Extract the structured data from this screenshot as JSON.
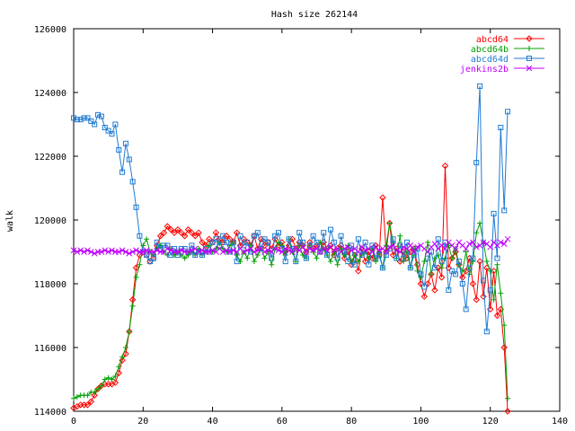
{
  "chart_data": {
    "type": "line",
    "title": "Hash size 262144",
    "xlabel": "",
    "ylabel": "walk",
    "xlim": [
      0,
      140
    ],
    "ylim": [
      114000,
      126000
    ],
    "xticks": [
      0,
      20,
      40,
      60,
      80,
      100,
      120,
      140
    ],
    "yticks": [
      114000,
      116000,
      118000,
      120000,
      122000,
      124000,
      126000
    ],
    "grid": false,
    "legend_position": "top-right",
    "series": [
      {
        "name": "abcd64",
        "color": "#ff0000",
        "marker": "diamond",
        "x": [
          0,
          1,
          2,
          3,
          4,
          5,
          6,
          7,
          8,
          9,
          10,
          11,
          12,
          13,
          14,
          15,
          16,
          17,
          18,
          19,
          20,
          21,
          22,
          23,
          24,
          25,
          26,
          27,
          28,
          29,
          30,
          31,
          32,
          33,
          34,
          35,
          36,
          37,
          38,
          39,
          40,
          41,
          42,
          43,
          44,
          45,
          46,
          47,
          48,
          49,
          50,
          51,
          52,
          53,
          54,
          55,
          56,
          57,
          58,
          59,
          60,
          61,
          62,
          63,
          64,
          65,
          66,
          67,
          68,
          69,
          70,
          71,
          72,
          73,
          74,
          75,
          76,
          77,
          78,
          79,
          80,
          81,
          82,
          83,
          84,
          85,
          86,
          87,
          88,
          89,
          90,
          91,
          92,
          93,
          94,
          95,
          96,
          97,
          98,
          99,
          100,
          101,
          102,
          103,
          104,
          105,
          106,
          107,
          108,
          109,
          110,
          111,
          112,
          113,
          114,
          115,
          116,
          117,
          118,
          119,
          120,
          121,
          122,
          123,
          124,
          125
        ],
        "y": [
          114100,
          114150,
          114200,
          114200,
          114200,
          114300,
          114500,
          114700,
          114800,
          114850,
          114850,
          114850,
          114900,
          115200,
          115600,
          115800,
          116500,
          117500,
          118500,
          118900,
          119000,
          118900,
          118700,
          118800,
          119200,
          119500,
          119600,
          119800,
          119700,
          119600,
          119700,
          119600,
          119500,
          119700,
          119600,
          119500,
          119600,
          119300,
          119200,
          119400,
          119300,
          119600,
          119400,
          119300,
          119500,
          119400,
          119300,
          119600,
          119200,
          119400,
          119300,
          119200,
          119500,
          119100,
          119400,
          119200,
          119300,
          119100,
          119400,
          119200,
          119300,
          119000,
          119200,
          119400,
          119100,
          119300,
          119200,
          119000,
          119300,
          119100,
          119200,
          119000,
          119300,
          119100,
          119200,
          118900,
          119100,
          119200,
          118800,
          119000,
          118600,
          118900,
          118400,
          119100,
          118700,
          119000,
          118800,
          119200,
          118900,
          120700,
          119000,
          119900,
          118900,
          119100,
          118700,
          119000,
          118800,
          119000,
          119100,
          118600,
          118000,
          117600,
          118000,
          118300,
          117800,
          118500,
          118200,
          121700,
          118500,
          118800,
          119000,
          118600,
          118200,
          118400,
          118800,
          118000,
          117500,
          118700,
          117600,
          118500,
          117200,
          118400,
          117000,
          117200,
          116000,
          114000
        ]
      },
      {
        "name": "abcd64b",
        "color": "#00a000",
        "marker": "plus",
        "x": [
          0,
          1,
          2,
          3,
          4,
          5,
          6,
          7,
          8,
          9,
          10,
          11,
          12,
          13,
          14,
          15,
          16,
          17,
          18,
          19,
          20,
          21,
          22,
          23,
          24,
          25,
          26,
          27,
          28,
          29,
          30,
          31,
          32,
          33,
          34,
          35,
          36,
          37,
          38,
          39,
          40,
          41,
          42,
          43,
          44,
          45,
          46,
          47,
          48,
          49,
          50,
          51,
          52,
          53,
          54,
          55,
          56,
          57,
          58,
          59,
          60,
          61,
          62,
          63,
          64,
          65,
          66,
          67,
          68,
          69,
          70,
          71,
          72,
          73,
          74,
          75,
          76,
          77,
          78,
          79,
          80,
          81,
          82,
          83,
          84,
          85,
          86,
          87,
          88,
          89,
          90,
          91,
          92,
          93,
          94,
          95,
          96,
          97,
          98,
          99,
          100,
          101,
          102,
          103,
          104,
          105,
          106,
          107,
          108,
          109,
          110,
          111,
          112,
          113,
          114,
          115,
          116,
          117,
          118,
          119,
          120,
          121,
          122,
          123,
          124,
          125
        ],
        "y": [
          114400,
          114450,
          114500,
          114500,
          114500,
          114600,
          114600,
          114700,
          114800,
          115000,
          115050,
          115000,
          115100,
          115400,
          115700,
          116000,
          116500,
          117300,
          118200,
          118600,
          119200,
          119400,
          119000,
          118900,
          119100,
          119200,
          119000,
          118900,
          119100,
          118900,
          119000,
          118900,
          118800,
          118900,
          119000,
          118900,
          119100,
          118900,
          119000,
          119200,
          119000,
          119100,
          119300,
          119100,
          119000,
          119200,
          119300,
          118900,
          118700,
          119000,
          118800,
          119200,
          118700,
          118900,
          119100,
          118800,
          119000,
          118600,
          119100,
          119300,
          119200,
          118900,
          119400,
          119000,
          118700,
          119200,
          118900,
          118800,
          119200,
          119000,
          118800,
          119300,
          119100,
          118900,
          118700,
          119000,
          118600,
          119100,
          118900,
          119200,
          118700,
          118900,
          118700,
          118900,
          119000,
          118800,
          119100,
          118700,
          119000,
          118500,
          119200,
          119900,
          119300,
          118800,
          119500,
          118700,
          119000,
          118500,
          119100,
          118400,
          118200,
          118700,
          119300,
          118300,
          118800,
          118900,
          118500,
          118800,
          119200,
          118800,
          119100,
          118600,
          118400,
          119000,
          118300,
          118700,
          119600,
          119900,
          119300,
          118700,
          118400,
          117500,
          118600,
          117700,
          116700,
          114400
        ]
      },
      {
        "name": "abcd64d",
        "color": "#1e7bd3",
        "marker": "square",
        "x": [
          0,
          1,
          2,
          3,
          4,
          5,
          6,
          7,
          8,
          9,
          10,
          11,
          12,
          13,
          14,
          15,
          16,
          17,
          18,
          19,
          20,
          21,
          22,
          23,
          24,
          25,
          26,
          27,
          28,
          29,
          30,
          31,
          32,
          33,
          34,
          35,
          36,
          37,
          38,
          39,
          40,
          41,
          42,
          43,
          44,
          45,
          46,
          47,
          48,
          49,
          50,
          51,
          52,
          53,
          54,
          55,
          56,
          57,
          58,
          59,
          60,
          61,
          62,
          63,
          64,
          65,
          66,
          67,
          68,
          69,
          70,
          71,
          72,
          73,
          74,
          75,
          76,
          77,
          78,
          79,
          80,
          81,
          82,
          83,
          84,
          85,
          86,
          87,
          88,
          89,
          90,
          91,
          92,
          93,
          94,
          95,
          96,
          97,
          98,
          99,
          100,
          101,
          102,
          103,
          104,
          105,
          106,
          107,
          108,
          109,
          110,
          111,
          112,
          113,
          114,
          115,
          116,
          117,
          118,
          119,
          120,
          121,
          122,
          123,
          124,
          125
        ],
        "y": [
          123200,
          123150,
          123150,
          123200,
          123200,
          123100,
          123000,
          123300,
          123250,
          122900,
          122800,
          122700,
          123000,
          122200,
          121500,
          122400,
          121900,
          121200,
          120400,
          119500,
          119000,
          118900,
          118700,
          118800,
          119300,
          119100,
          119200,
          119200,
          118900,
          119100,
          118900,
          119100,
          119100,
          119000,
          119200,
          118900,
          119000,
          118900,
          119100,
          119000,
          119300,
          119400,
          119200,
          119500,
          119300,
          119000,
          119300,
          118700,
          119500,
          119200,
          119300,
          119000,
          119500,
          119600,
          119100,
          119400,
          119300,
          118800,
          119500,
          119600,
          119100,
          118700,
          119400,
          119100,
          118700,
          119600,
          119300,
          118800,
          119200,
          119500,
          119300,
          119000,
          119600,
          118900,
          119700,
          119300,
          118800,
          119500,
          119000,
          118700,
          119200,
          118600,
          119400,
          118900,
          119300,
          118600,
          119200,
          118800,
          118900,
          118500,
          118900,
          119100,
          119400,
          118800,
          119200,
          118800,
          119300,
          118500,
          118900,
          119100,
          118300,
          117900,
          118800,
          119000,
          118500,
          119400,
          118700,
          119300,
          117800,
          118400,
          118300,
          118700,
          118000,
          117200,
          118500,
          118800,
          121800,
          124200,
          118100,
          116500,
          117800,
          120200,
          118800,
          122900,
          120300,
          123400
        ]
      },
      {
        "name": "jenkins2b",
        "color": "#c000ff",
        "marker": "cross",
        "x": [
          0,
          1,
          2,
          3,
          4,
          5,
          6,
          7,
          8,
          9,
          10,
          11,
          12,
          13,
          14,
          15,
          16,
          17,
          18,
          19,
          20,
          21,
          22,
          23,
          24,
          25,
          26,
          27,
          28,
          29,
          30,
          31,
          32,
          33,
          34,
          35,
          36,
          37,
          38,
          39,
          40,
          41,
          42,
          43,
          44,
          45,
          46,
          47,
          48,
          49,
          50,
          51,
          52,
          53,
          54,
          55,
          56,
          57,
          58,
          59,
          60,
          61,
          62,
          63,
          64,
          65,
          66,
          67,
          68,
          69,
          70,
          71,
          72,
          73,
          74,
          75,
          76,
          77,
          78,
          79,
          80,
          81,
          82,
          83,
          84,
          85,
          86,
          87,
          88,
          89,
          90,
          91,
          92,
          93,
          94,
          95,
          96,
          97,
          98,
          99,
          100,
          101,
          102,
          103,
          104,
          105,
          106,
          107,
          108,
          109,
          110,
          111,
          112,
          113,
          114,
          115,
          116,
          117,
          118,
          119,
          120,
          121,
          122,
          123,
          124,
          125
        ],
        "y": [
          119050,
          119000,
          119050,
          119000,
          119050,
          119000,
          118950,
          119000,
          119000,
          119050,
          119000,
          119050,
          119000,
          119000,
          119050,
          119000,
          118950,
          119000,
          119050,
          119000,
          119000,
          119050,
          119000,
          119000,
          119050,
          119000,
          119000,
          119100,
          119050,
          119000,
          119000,
          119050,
          119000,
          119000,
          119050,
          119100,
          119000,
          119050,
          119000,
          119000,
          119050,
          119000,
          119100,
          119000,
          119050,
          119000,
          119050,
          119000,
          119100,
          119000,
          119050,
          119100,
          119000,
          119050,
          119100,
          119000,
          119050,
          119000,
          119100,
          119050,
          119000,
          119100,
          119050,
          119000,
          119100,
          119050,
          119150,
          119000,
          119100,
          119050,
          119100,
          119000,
          119100,
          119050,
          119150,
          119050,
          119100,
          119000,
          119100,
          119150,
          119050,
          119100,
          119000,
          119150,
          119050,
          119100,
          119000,
          119150,
          119050,
          119100,
          119000,
          119150,
          119200,
          119050,
          119000,
          119150,
          119100,
          119200,
          119000,
          119150,
          119200,
          119100,
          119000,
          119150,
          119250,
          119100,
          119200,
          119100,
          119300,
          119200,
          119100,
          119300,
          119200,
          119100,
          119250,
          119300,
          119150,
          119200,
          119300,
          119250,
          119150,
          119300,
          119200,
          119300,
          119250,
          119400
        ]
      }
    ]
  }
}
